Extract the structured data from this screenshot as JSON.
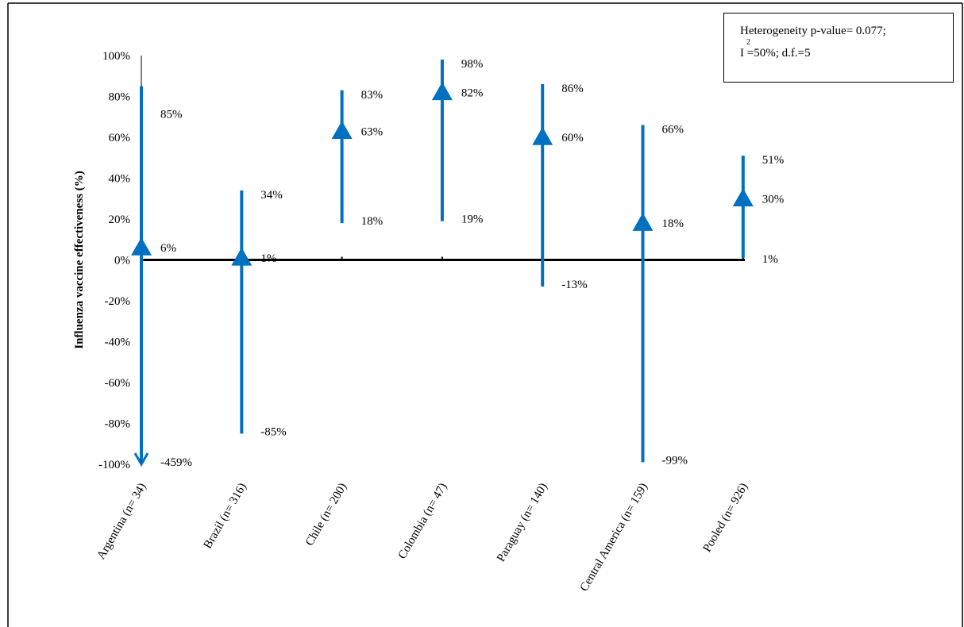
{
  "chart_data": {
    "type": "error-bar",
    "ylabel": "Influenza vaccine effectiveness (%)",
    "ylim": [
      -100,
      100
    ],
    "yticks": [
      "100%",
      "80%",
      "60%",
      "40%",
      "20%",
      "0%",
      "-20%",
      "-40%",
      "-60%",
      "-80%",
      "-100%"
    ],
    "ytick_values": [
      100,
      80,
      60,
      40,
      20,
      0,
      -20,
      -40,
      -60,
      -80,
      -100
    ],
    "categories": [
      "Argentina (n= 34)",
      "Brazil (n= 316)",
      "Chile (n= 200)",
      "Colombia (n= 47)",
      "Paraguay (n= 140)",
      "Central America (n= 159)",
      "Pooled (n= 926)"
    ],
    "points": [
      {
        "estimate": 6,
        "lower": -459,
        "upper": 85,
        "estimate_label": "6%",
        "lower_label": "-459%",
        "upper_label": "85%"
      },
      {
        "estimate": 1,
        "lower": -85,
        "upper": 34,
        "estimate_label": "1%",
        "lower_label": "-85%",
        "upper_label": "34%"
      },
      {
        "estimate": 63,
        "lower": 18,
        "upper": 83,
        "estimate_label": "63%",
        "lower_label": "18%",
        "upper_label": "83%"
      },
      {
        "estimate": 82,
        "lower": 19,
        "upper": 98,
        "estimate_label": "82%",
        "lower_label": "19%",
        "upper_label": "98%"
      },
      {
        "estimate": 60,
        "lower": -13,
        "upper": 86,
        "estimate_label": "60%",
        "lower_label": "-13%",
        "upper_label": "86%"
      },
      {
        "estimate": 18,
        "lower": -99,
        "upper": 66,
        "estimate_label": "18%",
        "lower_label": "-99%",
        "upper_label": "66%"
      },
      {
        "estimate": 30,
        "lower": 1,
        "upper": 51,
        "estimate_label": "30%",
        "lower_label": "1%",
        "upper_label": "51%"
      }
    ],
    "series_color": "#0070C0",
    "annotation": {
      "line1": "Heterogeneity p-value= 0.077;",
      "line2": "I =50%; d.f.=5",
      "superscript": "2"
    }
  }
}
